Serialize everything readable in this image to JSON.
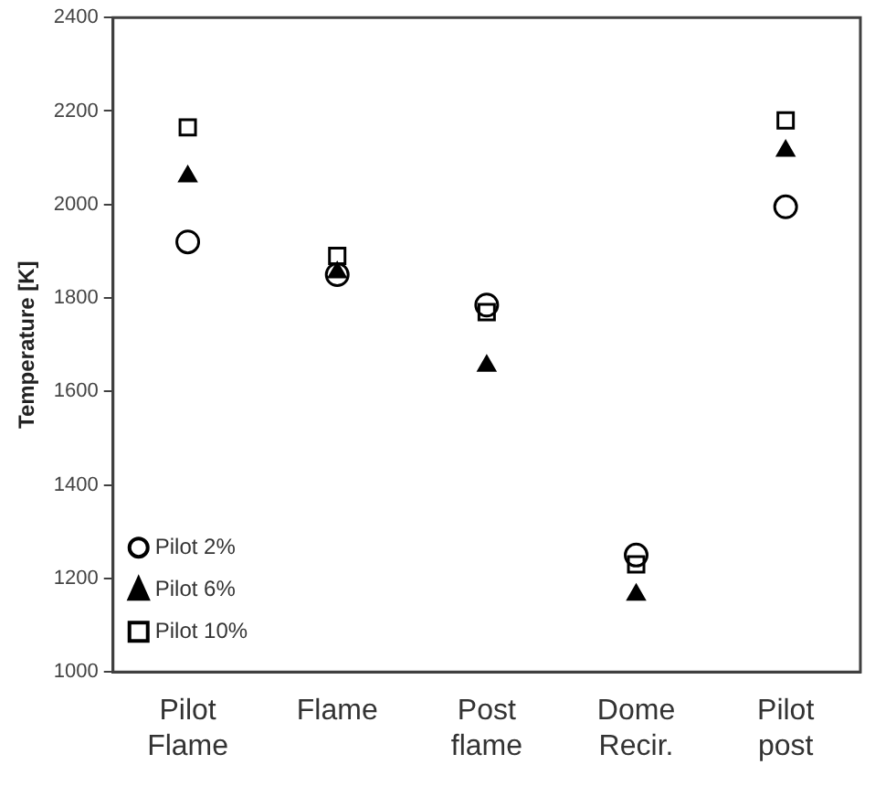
{
  "chart_data": {
    "type": "scatter",
    "ylabel": "Temperature [K]",
    "categories": [
      "Pilot Flame",
      "Flame",
      "Post flame",
      "Dome Recir.",
      "Pilot post"
    ],
    "series": [
      {
        "name": "Pilot 2%",
        "color": "#000000",
        "marker": "circle",
        "values": [
          1920,
          1850,
          1785,
          1250,
          1995
        ]
      },
      {
        "name": "Pilot 6%",
        "color": "#000000",
        "marker": "triangle",
        "values": [
          2060,
          1855,
          1655,
          1165,
          2115
        ]
      },
      {
        "name": "Pilot 10%",
        "color": "#000000",
        "marker": "square",
        "values": [
          2165,
          1890,
          1770,
          1230,
          2180
        ]
      }
    ],
    "ylim": [
      1000,
      2400
    ],
    "yticks": [
      1000,
      1200,
      1400,
      1600,
      1800,
      2000,
      2200,
      2400
    ],
    "grid": false,
    "legend": "bottom left"
  }
}
